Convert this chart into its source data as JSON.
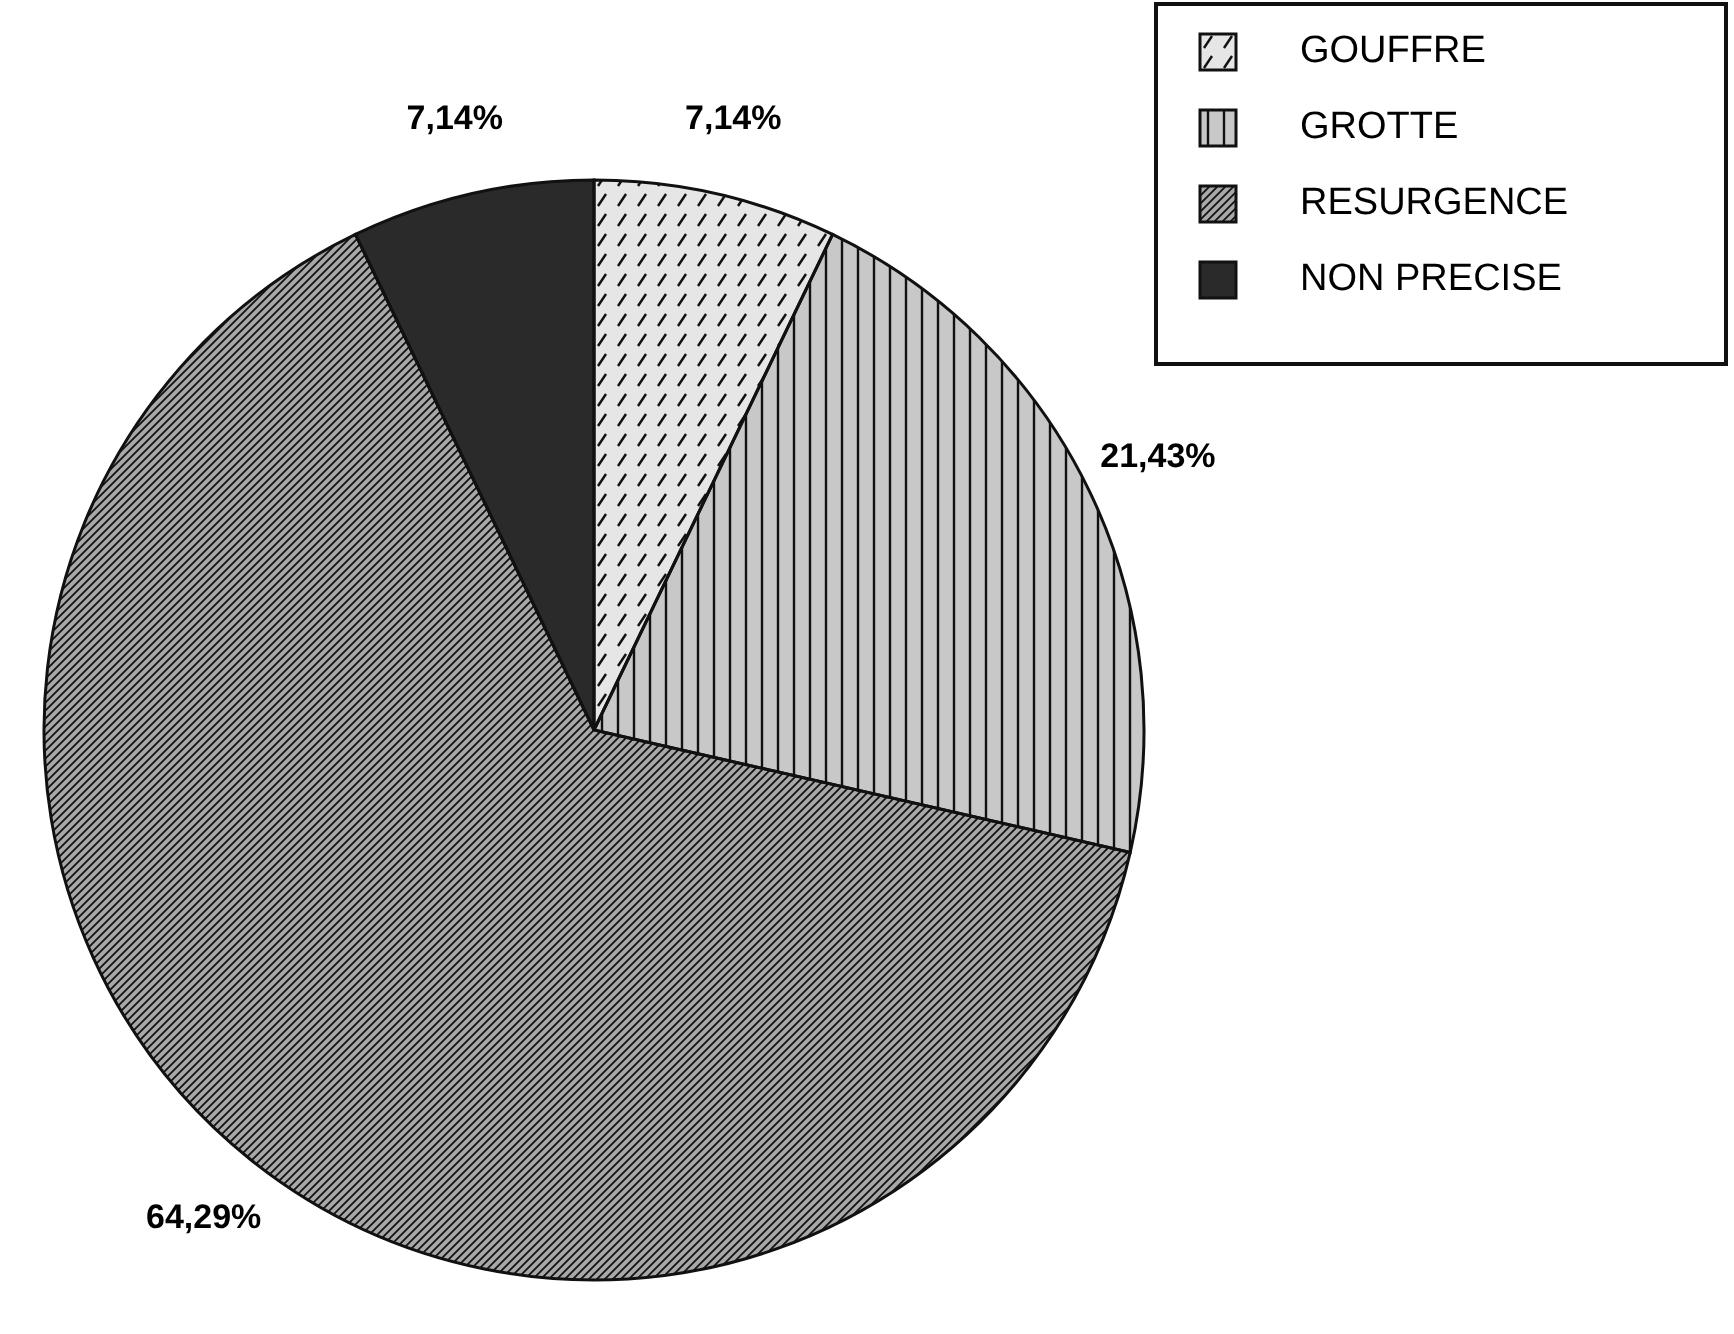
{
  "chart_data": {
    "type": "pie",
    "categories": [
      "GOUFFRE",
      "GROTTE",
      "RESURGENCE",
      "NON PRECISE"
    ],
    "values": [
      7.14,
      21.43,
      64.29,
      7.14
    ],
    "value_labels": [
      "7,14%",
      "21,43%",
      "64,29%",
      "7,14%"
    ],
    "colors": [
      "#e6e6e6",
      "#c8c8c8",
      "#a8a8a8",
      "#2a2a2a"
    ],
    "legend": "top right"
  }
}
